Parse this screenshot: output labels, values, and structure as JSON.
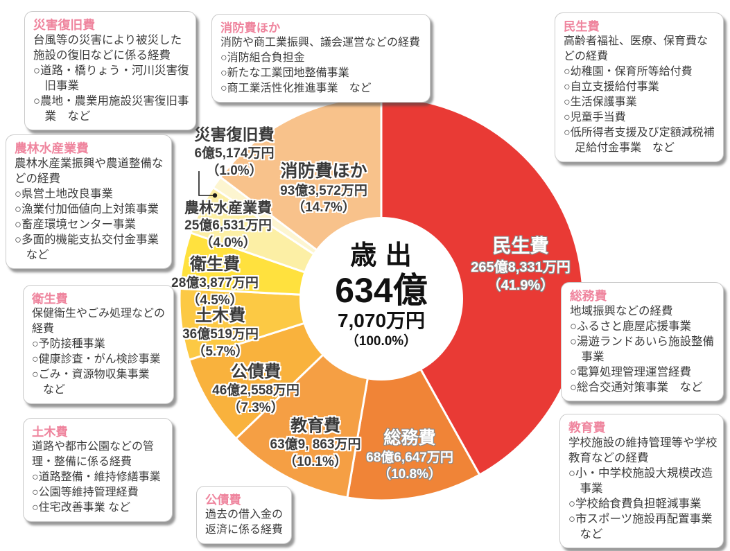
{
  "page": {
    "background_color": "#ffffff",
    "accent_heading_color": "#ef859e"
  },
  "chart_data": {
    "type": "pie",
    "donut": true,
    "title": "歳出",
    "legend_position": "none",
    "center_label": {
      "title": "歳 出",
      "amount_oku": "634億",
      "amount_man": "7,070万円",
      "percent": "（100.0%）"
    },
    "slices": [
      {
        "name": "民生費",
        "amount": "265億8,331万円",
        "percent": 41.9,
        "percent_label": "（41.9%）",
        "color": "#e93a35",
        "text_style": "light"
      },
      {
        "name": "総務費",
        "amount": "68億6,647万円",
        "percent": 10.8,
        "percent_label": "（10.8%）",
        "color": "#f08437",
        "text_style": "light"
      },
      {
        "name": "教育費",
        "amount": "63億9, 863万円",
        "percent": 10.1,
        "percent_label": "（10.1%）",
        "color": "#f59f44",
        "text_style": "dark"
      },
      {
        "name": "公債費",
        "amount": "46億2,558万円",
        "percent": 7.3,
        "percent_label": "（7.3%）",
        "color": "#f9b23d",
        "text_style": "dark"
      },
      {
        "name": "土木費",
        "amount": "36億519万円",
        "percent": 5.7,
        "percent_label": "（5.7%）",
        "color": "#fcc944",
        "text_style": "dark"
      },
      {
        "name": "衛生費",
        "amount": "28億3,877万円",
        "percent": 4.5,
        "percent_label": "（4.5%）",
        "color": "#ffe13e",
        "text_style": "dark"
      },
      {
        "name": "農林水産業費",
        "amount": "25億6,531万円",
        "percent": 4.0,
        "percent_label": "（4.0%）",
        "color": "#fcefa5",
        "text_style": "dark"
      },
      {
        "name": "災害復旧費",
        "amount": "6億5,174万円",
        "percent": 1.0,
        "percent_label": "（1.0%）",
        "color": "#fdf5d0",
        "text_style": "dark"
      },
      {
        "name": "消防費ほか",
        "amount": "93億3,572万円",
        "percent": 14.7,
        "percent_label": "（14.7%）",
        "color": "#f8c28b",
        "text_style": "dark"
      }
    ]
  },
  "boxes": [
    {
      "heading": "災害復旧費",
      "description": "台風等の災害により被災した施設の復旧などに係る経費",
      "items": [
        "○道路・橋りょう・河川災害復旧事業",
        "○農地・農業用施設災害復旧事業　など"
      ]
    },
    {
      "heading": "消防費ほか",
      "description": "消防や商工業振興、議会運営などの経費",
      "items": [
        "○消防組合負担金",
        "○新たな工業団地整備事業",
        "○商工業活性化推進事業　など"
      ]
    },
    {
      "heading": "民生費",
      "description": "高齢者福祉、医療、保育費などの経費",
      "items": [
        "○幼稚園・保育所等給付費",
        "○自立支援給付事業",
        "○生活保護事業",
        "○児童手当費",
        "○低所得者支援及び定額減税補足給付金事業　など"
      ]
    },
    {
      "heading": "農林水産業費",
      "description": "農林水産業振興や農道整備などの経費",
      "items": [
        "○県営土地改良事業",
        "○漁業付加価値向上対策事業",
        "○畜産環境センター事業",
        "○多面的機能支払交付金事業　など"
      ]
    },
    {
      "heading": "衛生費",
      "description": "保健衛生やごみ処理などの経費",
      "items": [
        "○予防接種事業",
        "○健康診査・がん検診事業",
        "○ごみ・資源物収集事業　など"
      ]
    },
    {
      "heading": "土木費",
      "description": "道路や都市公園などの管理・整備に係る経費",
      "items": [
        "○道路整備・維持修繕事業",
        "○公園等維持管理経費",
        "○住宅改善事業 など"
      ]
    },
    {
      "heading": "公債費",
      "description": "過去の借入金の返済に係る経費",
      "items": []
    },
    {
      "heading": "総務費",
      "description": "地域振興などの経費",
      "items": [
        "○ふるさと鹿屋応援事業",
        "○湯遊ランドあいら施設整備事業",
        "○電算処理管理運営経費",
        "○総合交通対策事業　など"
      ]
    },
    {
      "heading": "教育費",
      "description": "学校施設の維持管理等や学校教育などの経費",
      "items": [
        "○小・中学校施設大規模改造事業",
        "○学校給食費負担軽減事業",
        "○市スポーツ施設再配置事業　など"
      ]
    }
  ]
}
